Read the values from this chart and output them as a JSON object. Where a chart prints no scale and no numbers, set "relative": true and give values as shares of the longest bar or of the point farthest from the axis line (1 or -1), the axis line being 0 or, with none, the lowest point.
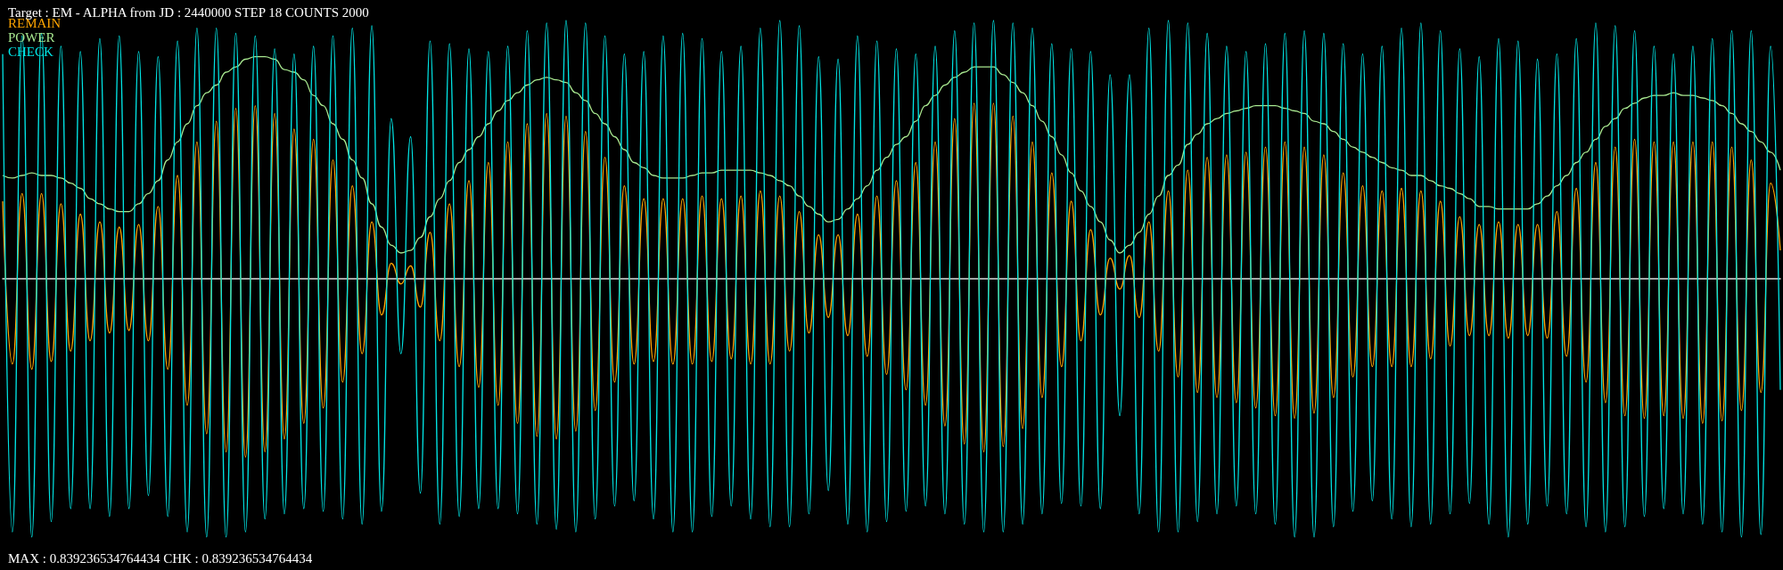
{
  "chart_data": {
    "type": "line",
    "title": "Target : EM - ALPHA from JD : 2440000 STEP 18 COUNTS 2000",
    "relative": true,
    "legend": "top left",
    "marker": "none",
    "line_style": "solid",
    "grid": false,
    "annotations": [
      "MAX : 0.839236534764434 CHK : 0.839236534764434"
    ],
    "categories": [
      null,
      null,
      null,
      null,
      null,
      null,
      null,
      null,
      null,
      null,
      null,
      null,
      null,
      null,
      null,
      null,
      null,
      null,
      null,
      null,
      null,
      null,
      null,
      null,
      null,
      null,
      null,
      null,
      null,
      null,
      null,
      null,
      null,
      null,
      null,
      null,
      null,
      null,
      null,
      null,
      null,
      null,
      null,
      null,
      null,
      null,
      null,
      null,
      null,
      null,
      null,
      null,
      null,
      null,
      null,
      null,
      null,
      null,
      null,
      null,
      null,
      null,
      null,
      null,
      null,
      null,
      null,
      null,
      null,
      null,
      null,
      null,
      null,
      null,
      null,
      null,
      null,
      null,
      null,
      null,
      null,
      null,
      null,
      null,
      null,
      null,
      null,
      null,
      null,
      null,
      null,
      null,
      null,
      null,
      null,
      null,
      null,
      null,
      null,
      null,
      null,
      null,
      null,
      null,
      null,
      null,
      null,
      null,
      null,
      null,
      null,
      null,
      null,
      null,
      null,
      null,
      null,
      null,
      null,
      null,
      null,
      null,
      null,
      null,
      null,
      null,
      null,
      null,
      null,
      null,
      null,
      null,
      null,
      null,
      null,
      null,
      null,
      null,
      null,
      null,
      null,
      null,
      null,
      null,
      null,
      null,
      null,
      null,
      null,
      null,
      null,
      null,
      null,
      null,
      null,
      null,
      null,
      null,
      null,
      null,
      null,
      null,
      null,
      null,
      null,
      null,
      null,
      null,
      null,
      null,
      null,
      null,
      null,
      null,
      null,
      null,
      null,
      null,
      null,
      null,
      null,
      null,
      null,
      null
    ],
    "series": [
      {
        "name": "REMAIN",
        "color": "#ffa500",
        "values": [
          0.3,
          -0.33,
          0.33,
          -0.35,
          0.33,
          -0.32,
          0.29,
          -0.28,
          0.25,
          -0.24,
          0.22,
          -0.21,
          0.2,
          -0.2,
          0.21,
          -0.24,
          0.28,
          -0.35,
          0.4,
          -0.49,
          0.53,
          -0.6,
          0.61,
          -0.67,
          0.66,
          -0.69,
          0.67,
          -0.67,
          0.64,
          -0.62,
          0.58,
          -0.56,
          0.54,
          -0.5,
          0.46,
          -0.4,
          0.36,
          -0.29,
          0.22,
          -0.14,
          0.06,
          -0.02,
          0.05,
          -0.11,
          0.18,
          -0.24,
          0.29,
          -0.34,
          0.38,
          -0.42,
          0.45,
          -0.49,
          0.53,
          -0.56,
          0.6,
          -0.61,
          0.64,
          -0.62,
          0.63,
          -0.59,
          0.57,
          -0.51,
          0.47,
          -0.4,
          0.36,
          -0.33,
          0.31,
          -0.32,
          0.31,
          -0.33,
          0.31,
          -0.33,
          0.32,
          -0.32,
          0.31,
          -0.31,
          0.32,
          -0.33,
          0.34,
          -0.33,
          0.32,
          -0.28,
          0.26,
          -0.21,
          0.17,
          -0.15,
          0.17,
          -0.22,
          0.25,
          -0.3,
          0.32,
          -0.37,
          0.38,
          -0.43,
          0.45,
          -0.49,
          0.53,
          -0.57,
          0.62,
          -0.64,
          0.68,
          -0.67,
          0.68,
          -0.65,
          0.63,
          -0.58,
          0.53,
          -0.46,
          0.41,
          -0.34,
          0.3,
          -0.24,
          0.19,
          -0.14,
          0.08,
          -0.04,
          0.09,
          -0.15,
          0.22,
          -0.28,
          0.34,
          -0.38,
          0.42,
          -0.44,
          0.47,
          -0.46,
          0.48,
          -0.48,
          0.49,
          -0.5,
          0.51,
          -0.53,
          0.53,
          -0.54,
          0.51,
          -0.52,
          0.48,
          -0.46,
          0.41,
          -0.38,
          0.36,
          -0.34,
          0.34,
          -0.34,
          0.35,
          -0.34,
          0.34,
          -0.31,
          0.3,
          -0.26,
          0.24,
          -0.22,
          0.21,
          -0.22,
          0.22,
          -0.23,
          0.21,
          -0.22,
          0.21,
          -0.23,
          0.26,
          -0.3,
          0.35,
          -0.4,
          0.45,
          -0.48,
          0.51,
          -0.53,
          0.54,
          -0.54,
          0.53,
          -0.53,
          0.53,
          -0.54,
          0.53,
          -0.56,
          0.53,
          -0.55,
          0.51,
          -0.51,
          0.46,
          -0.44,
          0.37,
          0.11
        ]
      },
      {
        "name": "POWER",
        "color": "#a8e890",
        "values": [
          0.4,
          0.39,
          0.4,
          0.41,
          0.4,
          0.4,
          0.39,
          0.37,
          0.35,
          0.31,
          0.29,
          0.27,
          0.26,
          0.26,
          0.29,
          0.33,
          0.38,
          0.46,
          0.53,
          0.6,
          0.67,
          0.72,
          0.75,
          0.8,
          0.82,
          0.85,
          0.86,
          0.86,
          0.85,
          0.81,
          0.8,
          0.77,
          0.71,
          0.67,
          0.6,
          0.54,
          0.46,
          0.39,
          0.29,
          0.2,
          0.13,
          0.1,
          0.11,
          0.16,
          0.24,
          0.31,
          0.38,
          0.45,
          0.5,
          0.55,
          0.6,
          0.65,
          0.69,
          0.72,
          0.75,
          0.77,
          0.78,
          0.77,
          0.76,
          0.72,
          0.69,
          0.64,
          0.6,
          0.55,
          0.5,
          0.45,
          0.43,
          0.4,
          0.39,
          0.39,
          0.39,
          0.4,
          0.41,
          0.41,
          0.42,
          0.42,
          0.42,
          0.42,
          0.41,
          0.4,
          0.38,
          0.36,
          0.32,
          0.28,
          0.25,
          0.22,
          0.23,
          0.27,
          0.31,
          0.36,
          0.42,
          0.47,
          0.52,
          0.55,
          0.61,
          0.67,
          0.71,
          0.75,
          0.78,
          0.8,
          0.82,
          0.82,
          0.82,
          0.79,
          0.76,
          0.72,
          0.67,
          0.61,
          0.55,
          0.48,
          0.41,
          0.34,
          0.28,
          0.22,
          0.15,
          0.1,
          0.13,
          0.18,
          0.25,
          0.32,
          0.4,
          0.44,
          0.52,
          0.56,
          0.6,
          0.62,
          0.64,
          0.65,
          0.66,
          0.67,
          0.67,
          0.67,
          0.66,
          0.65,
          0.64,
          0.61,
          0.6,
          0.57,
          0.54,
          0.51,
          0.49,
          0.47,
          0.45,
          0.43,
          0.42,
          0.4,
          0.4,
          0.38,
          0.36,
          0.35,
          0.33,
          0.31,
          0.28,
          0.28,
          0.27,
          0.27,
          0.27,
          0.27,
          0.29,
          0.32,
          0.36,
          0.4,
          0.45,
          0.49,
          0.54,
          0.59,
          0.62,
          0.66,
          0.68,
          0.7,
          0.71,
          0.71,
          0.72,
          0.71,
          0.71,
          0.7,
          0.69,
          0.67,
          0.64,
          0.6,
          0.57,
          0.53,
          0.49,
          0.42
        ]
      },
      {
        "name": "CHECK",
        "color": "#00e5e5",
        "values": [
          0.87,
          -0.98,
          0.94,
          -1.0,
          0.95,
          -0.94,
          0.9,
          -0.89,
          0.88,
          -0.89,
          0.93,
          -0.92,
          0.94,
          -0.89,
          0.88,
          -0.84,
          0.86,
          -0.92,
          0.92,
          -0.98,
          0.97,
          -1.0,
          0.97,
          -1.0,
          0.95,
          -0.98,
          0.94,
          -0.93,
          0.89,
          -0.91,
          0.87,
          -0.89,
          0.9,
          -0.9,
          0.94,
          -0.93,
          0.97,
          -0.95,
          0.98,
          -0.9,
          0.62,
          -0.29,
          0.55,
          -0.83,
          0.92,
          -0.95,
          0.91,
          -0.92,
          0.89,
          -0.89,
          0.88,
          -0.89,
          0.9,
          -0.91,
          0.96,
          -0.95,
          0.99,
          -0.97,
          1.0,
          -0.98,
          0.99,
          -0.93,
          0.94,
          -0.88,
          0.87,
          -0.86,
          0.88,
          -0.93,
          0.94,
          -0.98,
          0.95,
          -0.98,
          0.93,
          -0.92,
          0.88,
          -0.88,
          0.9,
          -0.93,
          0.97,
          -0.96,
          1.0,
          -0.96,
          0.98,
          -0.91,
          0.86,
          -0.82,
          0.85,
          -0.95,
          0.94,
          -0.98,
          0.92,
          -0.94,
          0.89,
          -0.9,
          0.87,
          -0.88,
          0.9,
          -0.91,
          0.96,
          -0.95,
          0.99,
          -0.98,
          1.0,
          -0.98,
          0.99,
          -0.95,
          0.97,
          -0.91,
          0.91,
          -0.87,
          0.89,
          -0.88,
          0.88,
          -0.89,
          0.79,
          -0.53,
          0.79,
          -0.91,
          0.97,
          -0.98,
          1.0,
          -0.98,
          0.99,
          -0.94,
          0.95,
          -0.91,
          0.9,
          -0.88,
          0.88,
          -0.91,
          0.91,
          -0.95,
          0.95,
          -1.0,
          0.96,
          -1.0,
          0.95,
          -0.96,
          0.91,
          -0.9,
          0.87,
          -0.86,
          0.9,
          -0.93,
          0.97,
          -0.96,
          0.99,
          -0.95,
          0.96,
          -0.91,
          0.89,
          -0.87,
          0.86,
          -0.95,
          0.93,
          -1.0,
          0.92,
          -0.95,
          0.85,
          -0.88,
          0.87,
          -0.91,
          0.93,
          -0.96,
          0.99,
          -0.98,
          0.98,
          -0.96,
          0.96,
          -0.92,
          0.9,
          -0.89,
          0.87,
          -0.91,
          0.9,
          -0.95,
          0.93,
          -0.98,
          0.96,
          -1.0,
          0.96,
          -0.99,
          0.9,
          -0.43
        ]
      }
    ]
  }
}
